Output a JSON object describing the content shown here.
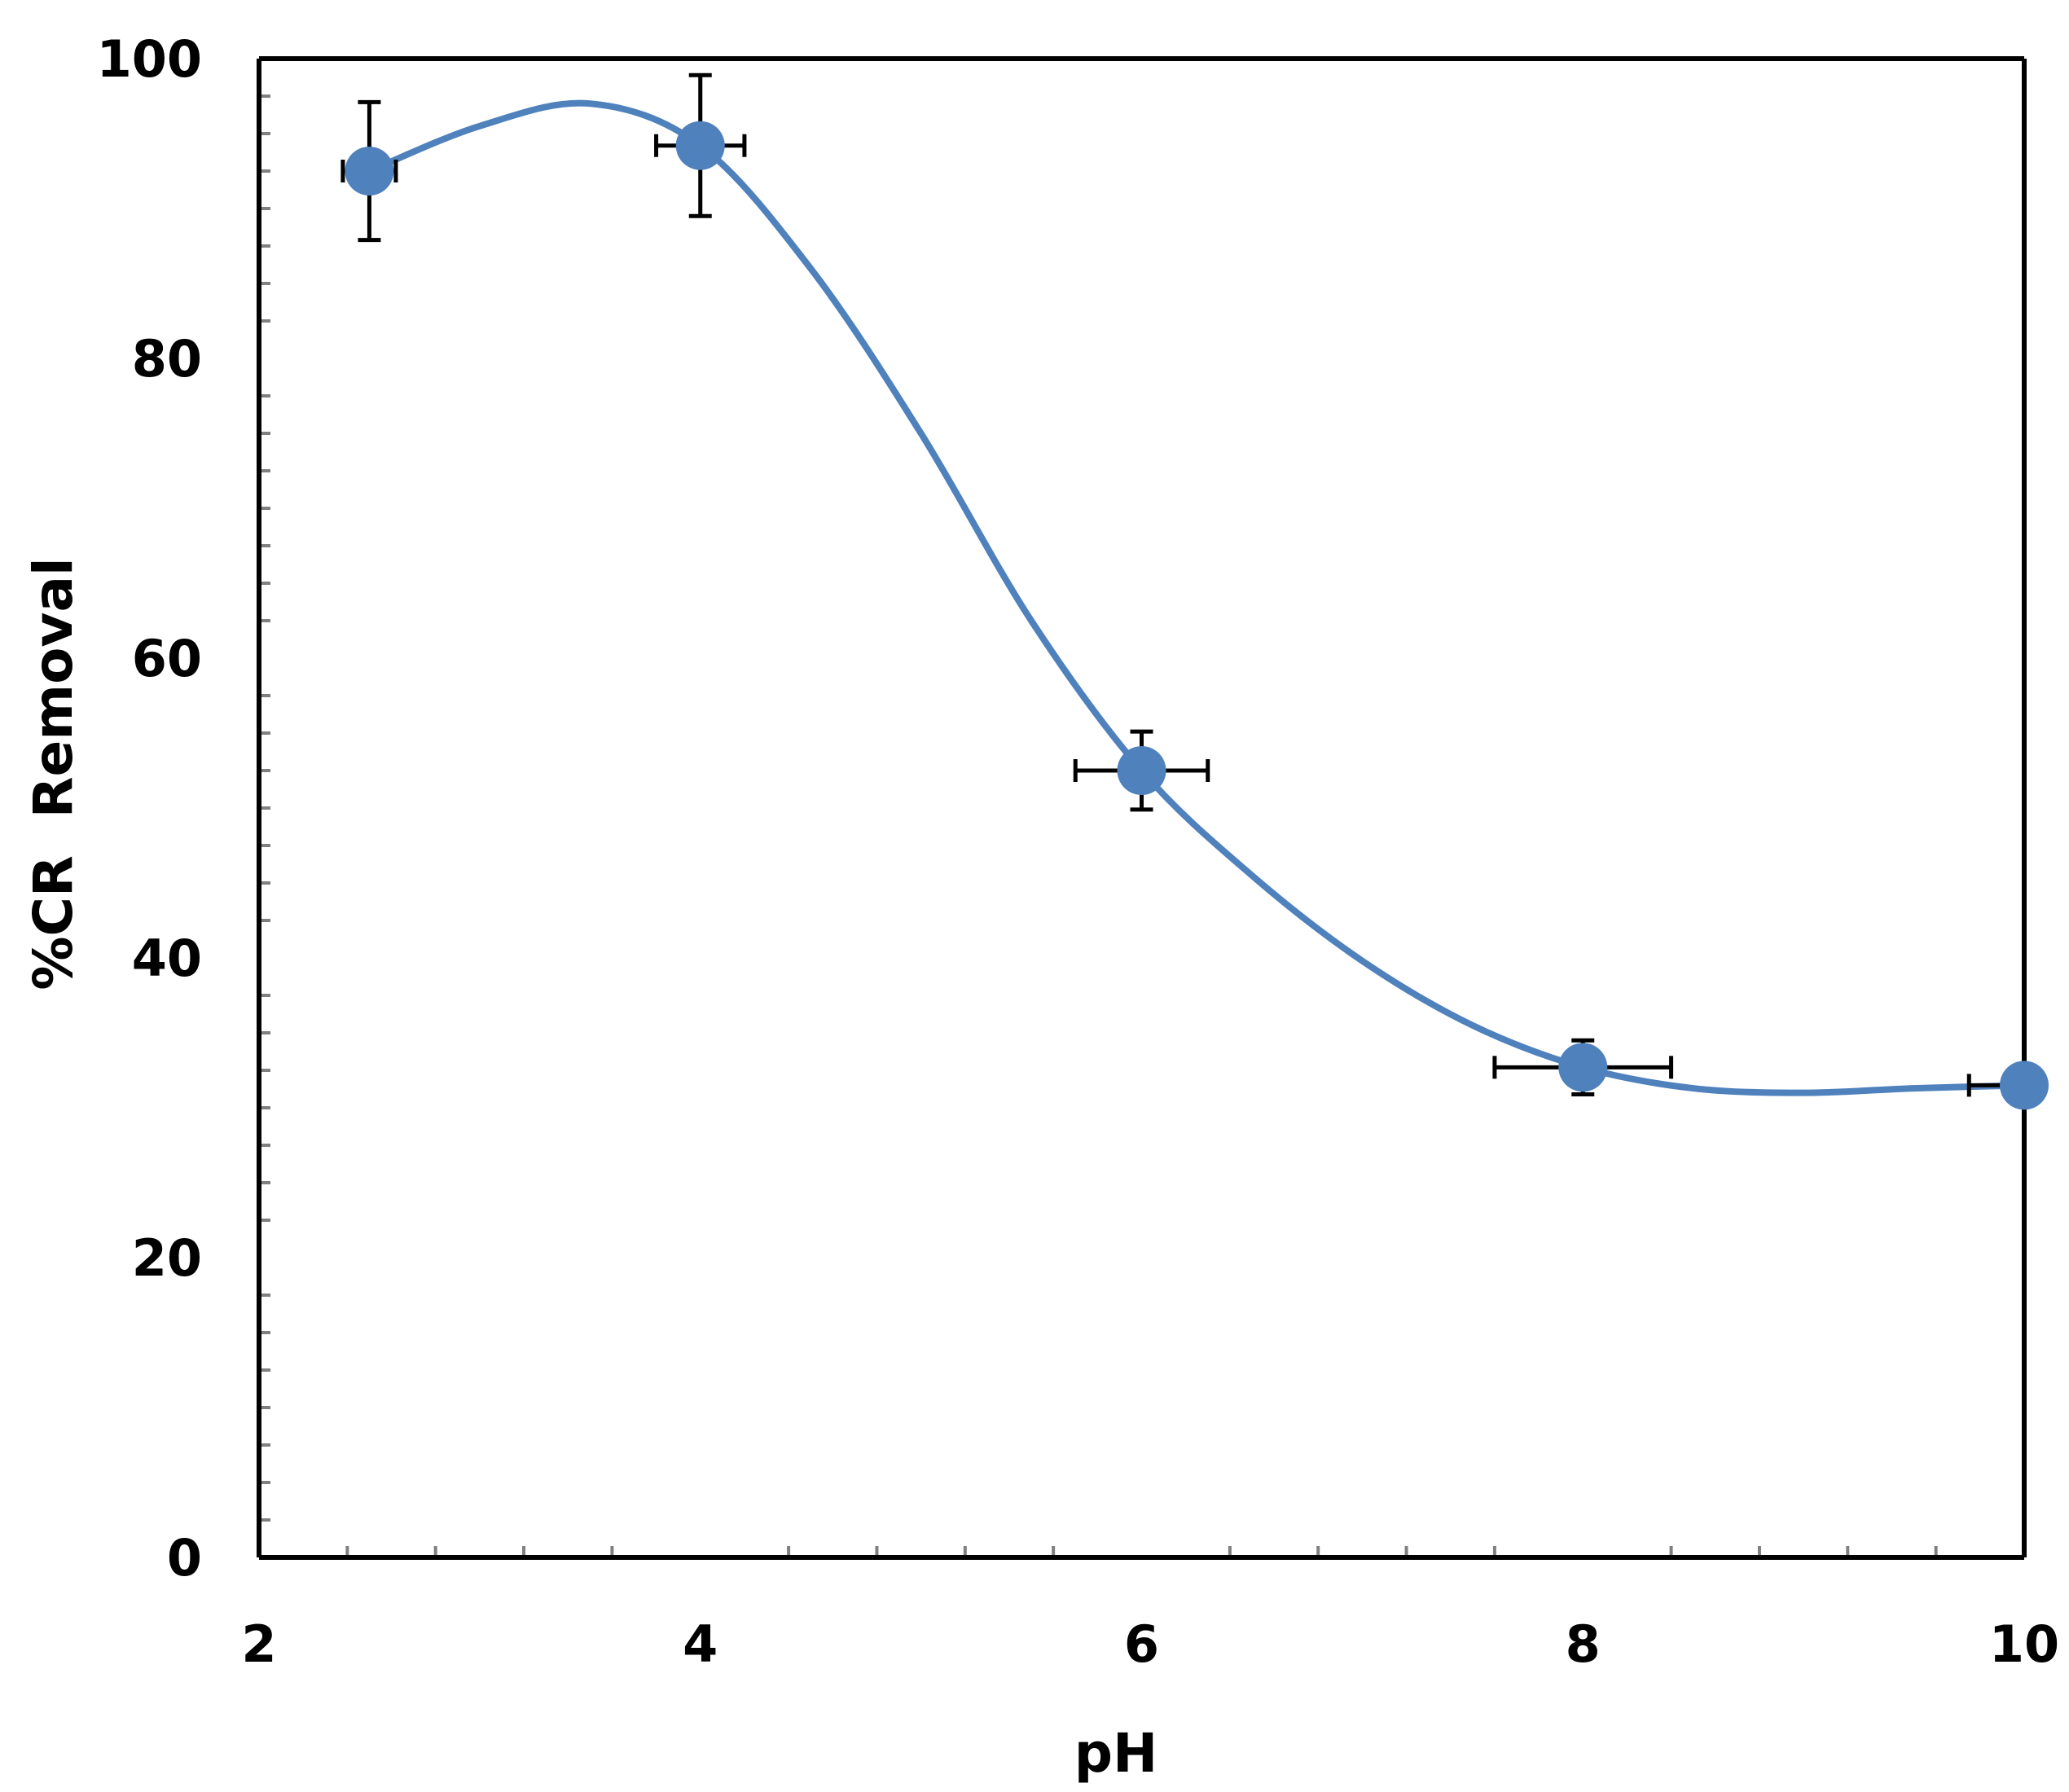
{
  "chart_data": {
    "type": "scatter",
    "xlabel": "pH",
    "ylabel": "%CR  Removal",
    "xlim": [
      2,
      10
    ],
    "ylim": [
      0,
      100
    ],
    "x_ticks": [
      "2",
      "4",
      "6",
      "8",
      "10"
    ],
    "y_ticks": [
      "0",
      "20",
      "40",
      "60",
      "80",
      "100"
    ],
    "grid": false,
    "legend": "none",
    "colors": {
      "series": "#4f81bd",
      "error_bar": "#000000",
      "axis": "#000000",
      "minor_tick": "#808080"
    },
    "series": [
      {
        "x": [
          2.5,
          4,
          6,
          8,
          10
        ],
        "y": [
          92.5,
          94.2,
          52.5,
          32.7,
          31.5
        ],
        "y_error": [
          4.6,
          4.7,
          2.6,
          1.8,
          0
        ],
        "x_error": [
          0.12,
          0.2,
          0.3,
          0.4,
          0.25
        ],
        "line": "smooth",
        "line_points": [
          [
            2.5,
            92.5
          ],
          [
            3.0,
            95.5
          ],
          [
            3.5,
            97.0
          ],
          [
            4.0,
            94.2
          ],
          [
            4.5,
            86.0
          ],
          [
            5.0,
            75.0
          ],
          [
            5.5,
            62.5
          ],
          [
            6.0,
            52.5
          ],
          [
            6.5,
            45.5
          ],
          [
            7.0,
            39.8
          ],
          [
            7.5,
            35.5
          ],
          [
            8.0,
            32.7
          ],
          [
            8.5,
            31.3
          ],
          [
            9.0,
            31.0
          ],
          [
            9.5,
            31.3
          ],
          [
            10.0,
            31.5
          ]
        ]
      }
    ]
  }
}
